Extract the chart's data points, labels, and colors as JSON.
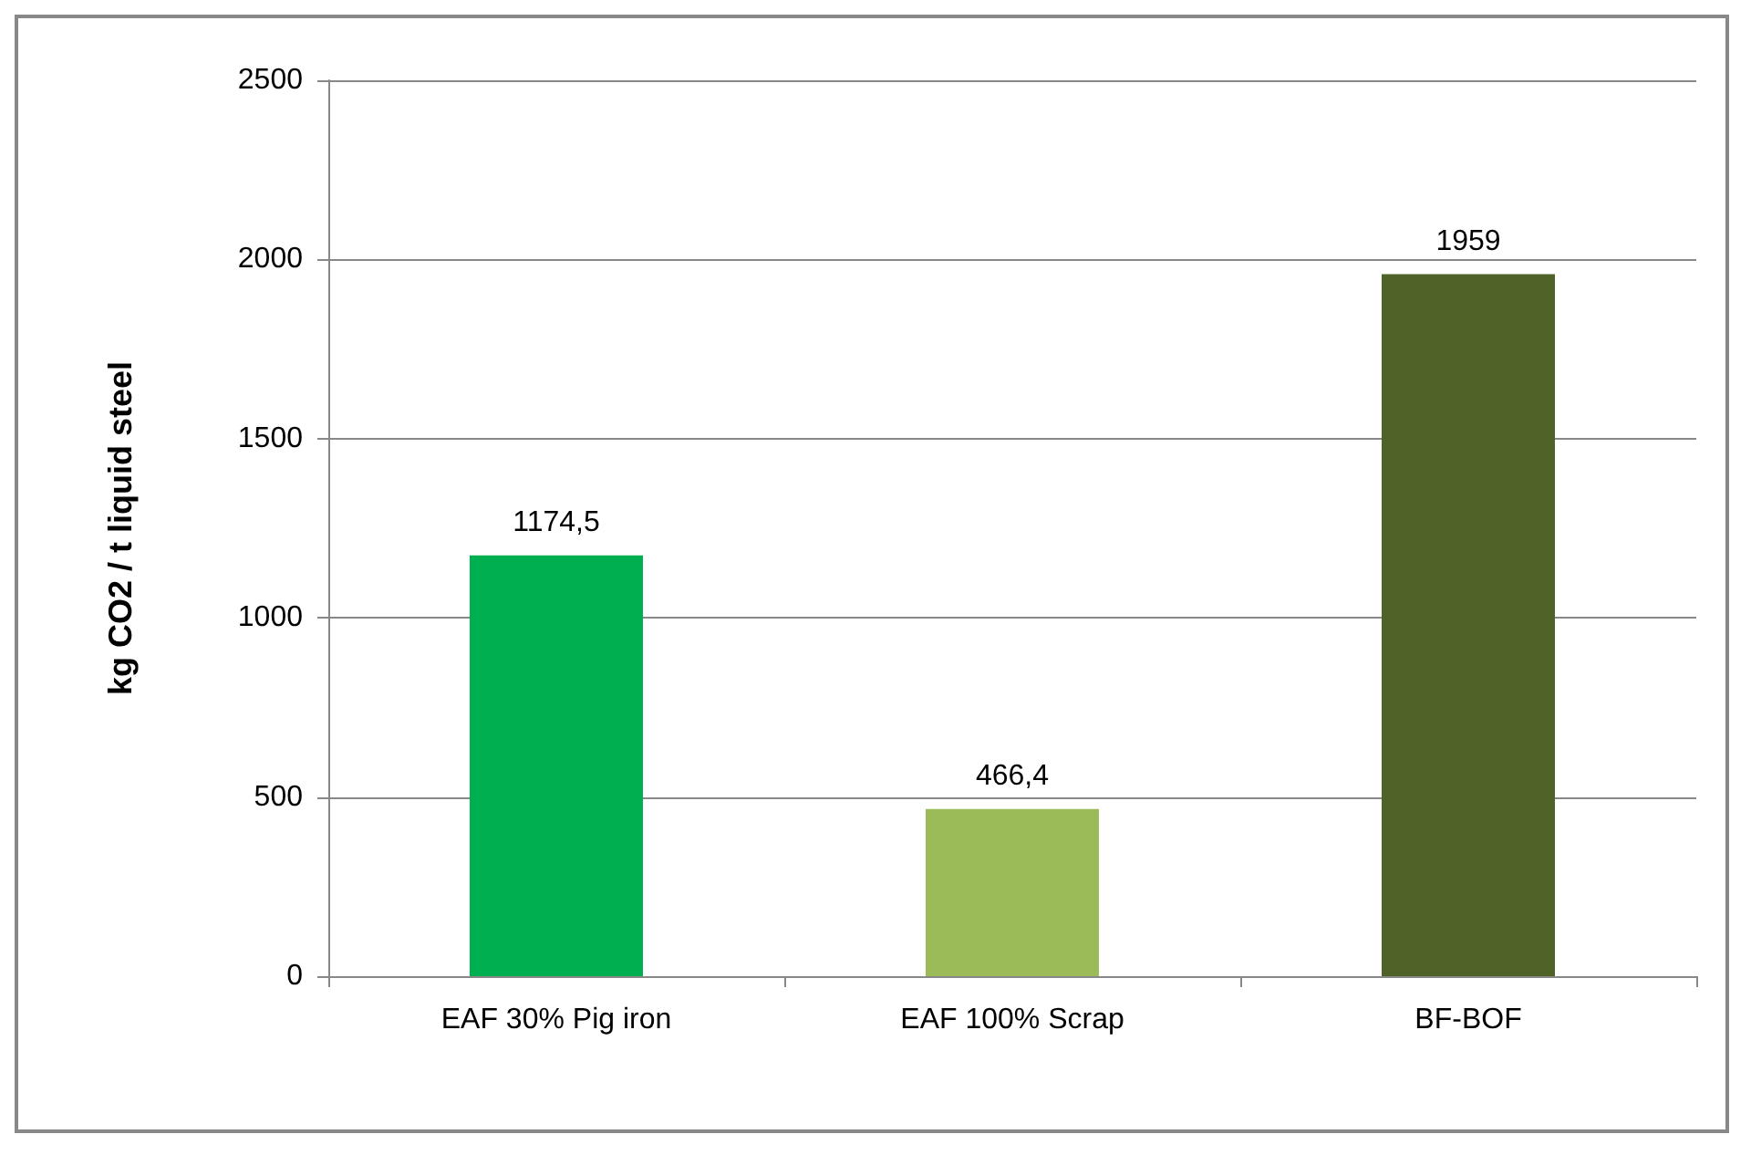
{
  "chart_data": {
    "type": "bar",
    "ylabel": "kg CO2 / t liquid steel",
    "categories": [
      "EAF 30% Pig iron",
      "EAF 100% Scrap",
      "BF-BOF"
    ],
    "values": [
      1174.5,
      466.4,
      1959
    ],
    "colors": [
      "#00b050",
      "#9bbb59",
      "#4f6228"
    ],
    "value_labels": [
      "1174,5",
      "466,4",
      "1959"
    ],
    "ylim": [
      0,
      2500
    ],
    "yticks": [
      0,
      500,
      1000,
      1500,
      2000,
      2500
    ],
    "grid": "y"
  }
}
